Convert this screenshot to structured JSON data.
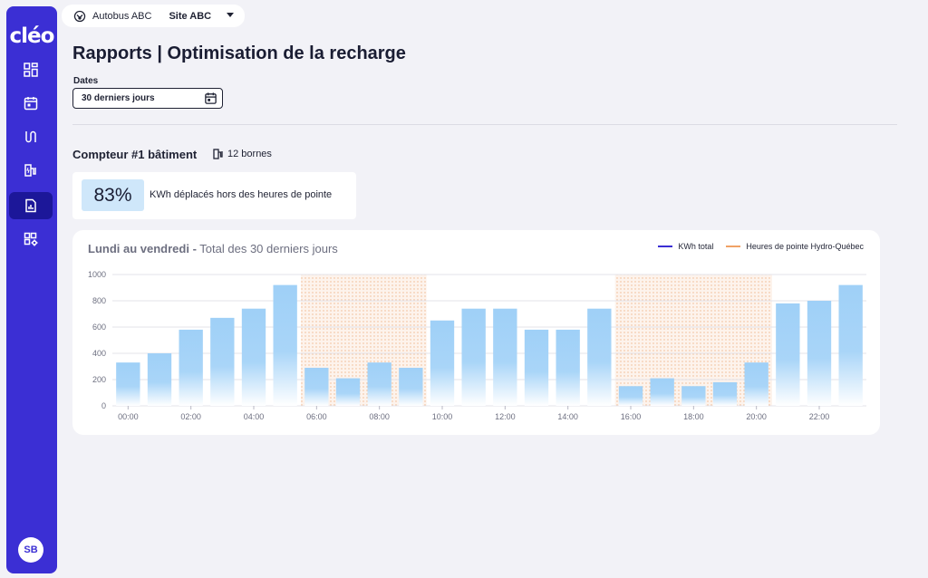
{
  "app": {
    "logo": "cléo"
  },
  "sidebar": {
    "items": [
      {
        "name": "dashboard-icon"
      },
      {
        "name": "calendar-icon"
      },
      {
        "name": "route-icon"
      },
      {
        "name": "charger-icon"
      },
      {
        "name": "reports-icon",
        "active": true
      },
      {
        "name": "settings-icon"
      }
    ],
    "avatar": "SB"
  },
  "topbar": {
    "org": "Autobus ABC",
    "site": "Site ABC"
  },
  "page": {
    "title": "Rapports | Optimisation de la recharge",
    "dates_label": "Dates",
    "date_value": "30 derniers jours"
  },
  "meter": {
    "title": "Compteur #1 bâtiment",
    "bornes": "12 bornes"
  },
  "kpi": {
    "value": "83%",
    "label": "KWh déplacés hors des heures de pointe"
  },
  "chart_card": {
    "title_bold": "Lundi au vendredi -",
    "title_rest": "Total des 30 derniers jours",
    "legend_kwh": "KWh total",
    "legend_peak": "Heures de pointe Hydro-Québec"
  },
  "colors": {
    "accent": "#3b2fd4",
    "bar": "#9fd0f7",
    "peak": "#f0a266",
    "kwh_line": "#3b2fd4"
  },
  "chart_data": {
    "type": "bar",
    "title": "",
    "x_tick_labels": [
      "00:00",
      "02:00",
      "04:00",
      "06:00",
      "08:00",
      "10:00",
      "12:00",
      "14:00",
      "16:00",
      "18:00",
      "20:00",
      "22:00"
    ],
    "y_ticks": [
      0,
      200,
      400,
      600,
      800,
      1000
    ],
    "ylim": [
      0,
      1000
    ],
    "hours": [
      0,
      1,
      2,
      3,
      4,
      5,
      6,
      7,
      8,
      9,
      10,
      11,
      12,
      13,
      14,
      15,
      16,
      17,
      18,
      19,
      20,
      21,
      22,
      23
    ],
    "values": [
      330,
      400,
      580,
      670,
      740,
      920,
      290,
      210,
      330,
      290,
      650,
      740,
      740,
      580,
      580,
      740,
      150,
      210,
      150,
      180,
      330,
      780,
      800,
      920
    ],
    "peak_ranges": [
      [
        6,
        10
      ],
      [
        16,
        21
      ]
    ],
    "grid": true,
    "legend": "top-right"
  }
}
